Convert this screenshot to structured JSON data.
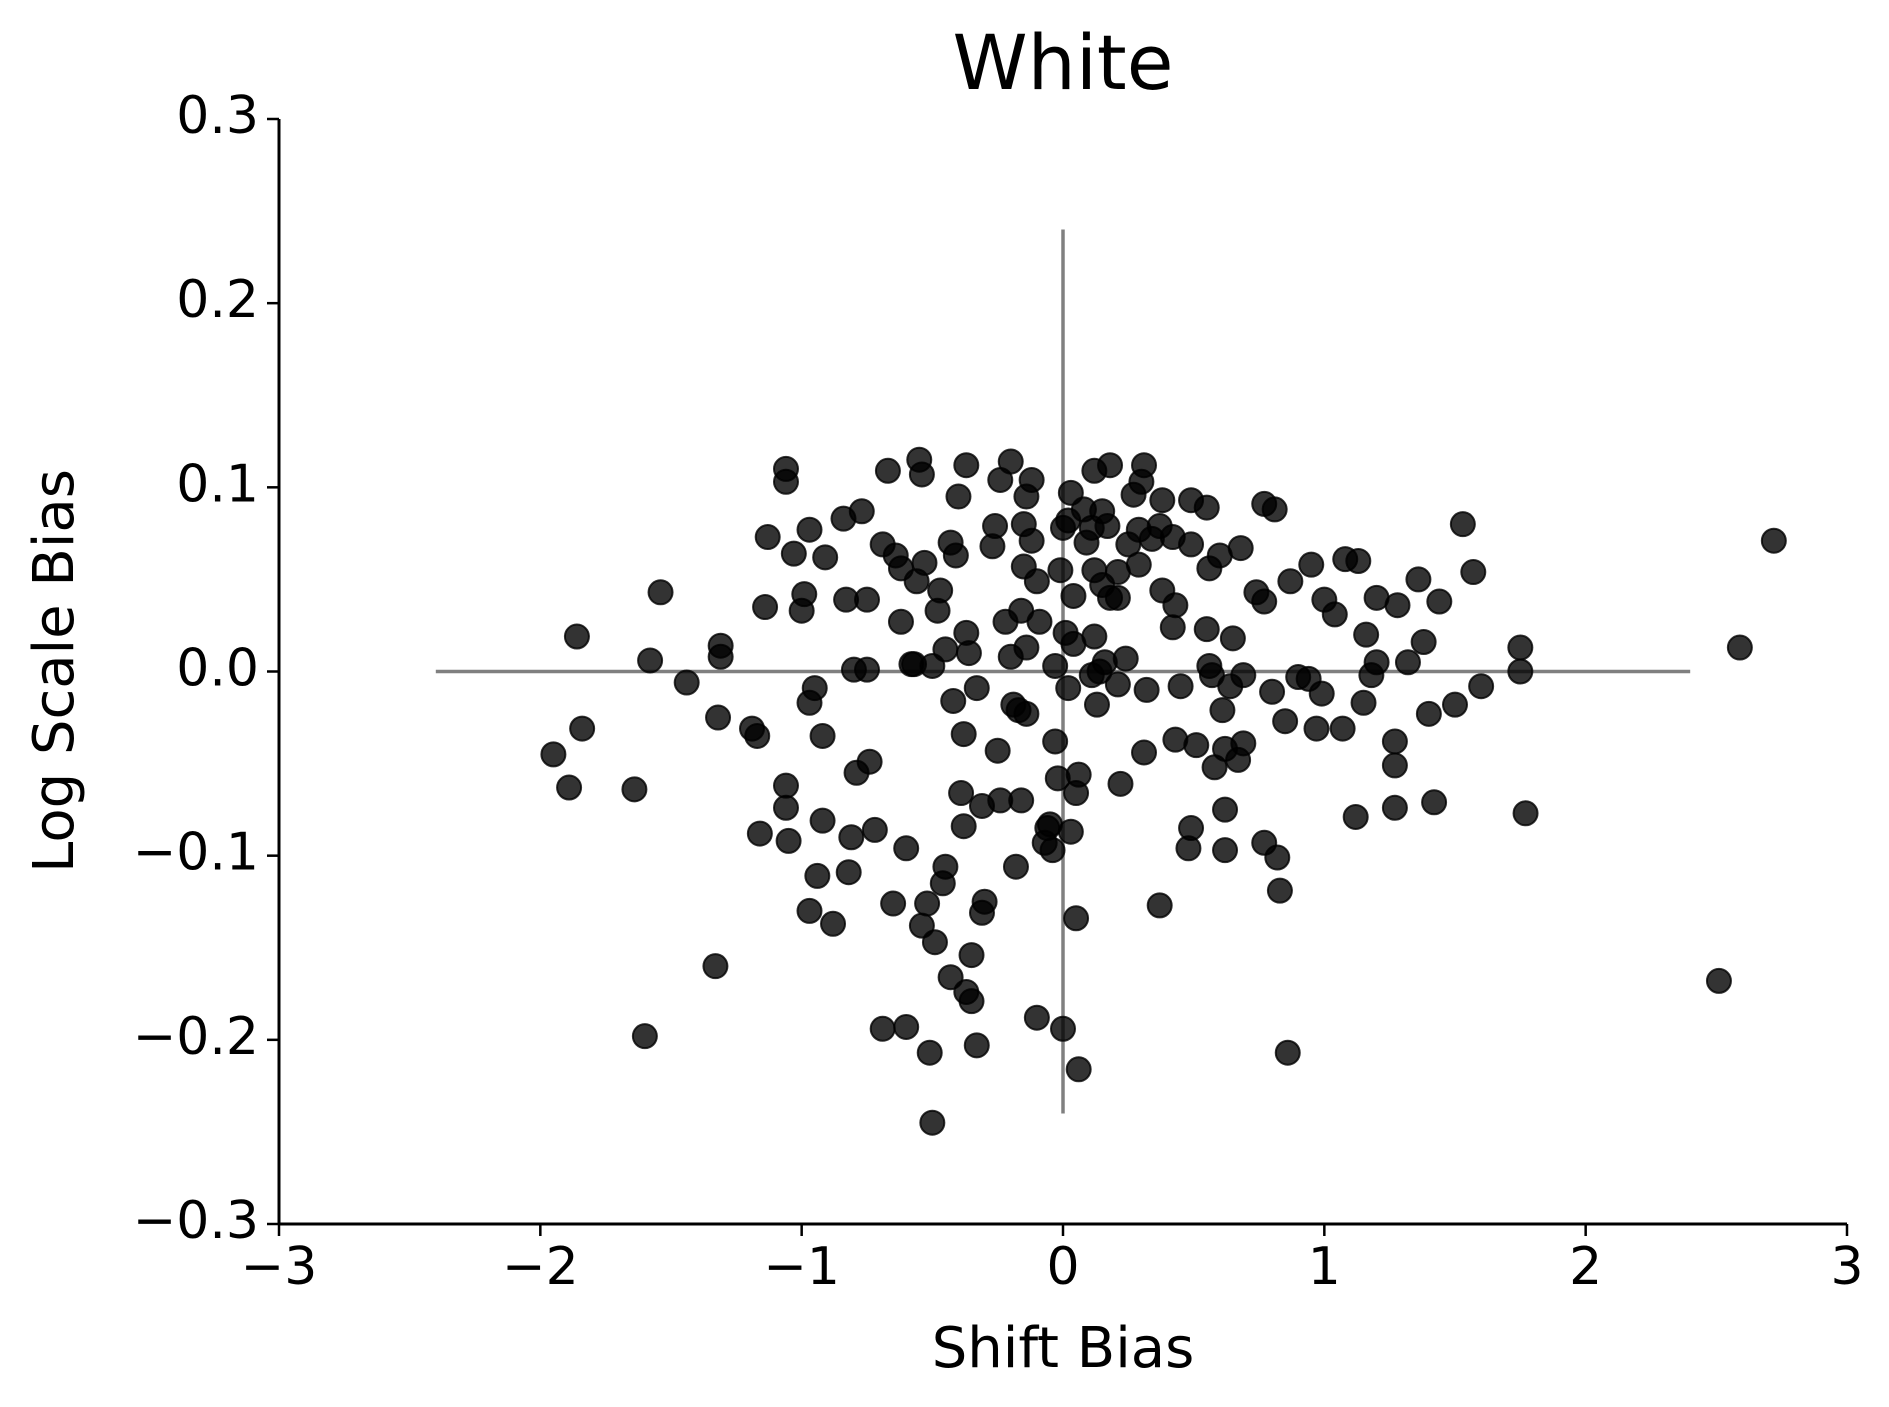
{
  "chart_data": {
    "type": "scatter",
    "title": "White",
    "x_label": "Shift Bias",
    "y_label": "Log Scale Bias",
    "color": "#000000",
    "alpha": 0.8,
    "xlim": [
      -3,
      3
    ],
    "ylim": [
      -0.3,
      0.3
    ],
    "xticks": [
      {
        "value": -3,
        "label": "−3"
      },
      {
        "value": -2,
        "label": "−2"
      },
      {
        "value": -1,
        "label": "−1"
      },
      0,
      1,
      2,
      3
    ],
    "yticks": [
      {
        "value": -0.3,
        "label": "−0.3"
      },
      {
        "value": -0.2,
        "label": "−0.2"
      },
      {
        "value": -0.1,
        "label": "−0.1"
      },
      {
        "value": 0,
        "label": "0.0"
      },
      0.1,
      0.2,
      0.3
    ],
    "reference_lines": [
      {
        "orientation": "horizontal",
        "value": 0,
        "from": -2.4,
        "to": 2.4,
        "color": "#808080"
      },
      {
        "orientation": "vertical",
        "value": 0,
        "from": -0.24,
        "to": 0.24,
        "color": "#808080"
      }
    ],
    "x": [
      2.72,
      2.59,
      2.51,
      1.77,
      1.75,
      1.75,
      1.6,
      1.53,
      1.57,
      1.5,
      1.44,
      1.42,
      1.4,
      1.38,
      1.36,
      1.32,
      1.28,
      1.27,
      1.27,
      1.27,
      1.2,
      1.2,
      1.18,
      1.16,
      1.15,
      1.13,
      1.12,
      1.08,
      1.07,
      1.04,
      1.0,
      0.99,
      0.97,
      0.95,
      0.94,
      0.9,
      0.87,
      0.86,
      0.85,
      0.83,
      0.82,
      0.81,
      0.8,
      0.77,
      0.77,
      0.77,
      0.74,
      0.69,
      0.69,
      0.68,
      0.67,
      0.65,
      0.64,
      0.62,
      0.62,
      0.62,
      0.61,
      0.6,
      0.58,
      0.57,
      0.56,
      0.56,
      0.55,
      0.55,
      0.51,
      0.49,
      0.49,
      0.48,
      0.49,
      0.45,
      0.43,
      0.43,
      0.42,
      0.42,
      0.38,
      0.37,
      0.38,
      0.37,
      0.34,
      0.32,
      0.31,
      0.31,
      0.3,
      0.29,
      0.29,
      0.27,
      0.25,
      0.24,
      0.22,
      0.21,
      0.21,
      0.21,
      0.18,
      0.18,
      0.17,
      0.16,
      0.15,
      0.15,
      0.14,
      0.13,
      0.12,
      0.12,
      0.12,
      0.11,
      0.11,
      0.09,
      0.08,
      0.06,
      0.06,
      0.05,
      0.05,
      0.04,
      0.04,
      0.03,
      0.03,
      0.02,
      0.02,
      0.01,
      0.0,
      0.0,
      -0.01,
      -0.02,
      -0.03,
      -0.03,
      -0.04,
      -0.05,
      -0.06,
      -0.07,
      -0.09,
      -0.1,
      -0.1,
      -0.12,
      -0.12,
      -0.14,
      -0.14,
      -0.15,
      -0.14,
      -0.15,
      -0.16,
      -0.16,
      -0.17,
      -0.18,
      -0.19,
      -0.2,
      -0.2,
      -0.22,
      -0.24,
      -0.24,
      -0.25,
      -0.26,
      -0.27,
      -0.3,
      -0.31,
      -0.31,
      -0.33,
      -0.33,
      -0.35,
      -0.35,
      -0.36,
      -0.37,
      -0.37,
      -0.37,
      -0.38,
      -0.38,
      -0.39,
      -0.4,
      -0.41,
      -0.42,
      -0.43,
      -0.43,
      -0.45,
      -0.45,
      -0.46,
      -0.47,
      -0.48,
      -0.49,
      -0.5,
      -0.5,
      -0.51,
      -0.52,
      -0.53,
      -0.54,
      -0.54,
      -0.55,
      -0.56,
      -0.57,
      -0.58,
      -0.6,
      -0.6,
      -0.62,
      -0.62,
      -0.64,
      -0.65,
      -0.67,
      -0.69,
      -0.69,
      -0.72,
      -0.74,
      -0.75,
      -0.75,
      -0.77,
      -0.79,
      -0.8,
      -0.81,
      -0.82,
      -0.83,
      -0.84,
      -0.88,
      -0.91,
      -0.92,
      -0.92,
      -0.94,
      -0.95,
      -0.97,
      -0.97,
      -0.97,
      -0.99,
      -1.0,
      -1.03,
      -1.05,
      -1.06,
      -1.06,
      -1.06,
      -1.06,
      -1.13,
      -1.14,
      -1.16,
      -1.17,
      -1.19,
      -1.31,
      -1.31,
      -1.32,
      -1.33,
      -1.44,
      -1.54,
      -1.58,
      -1.6,
      -1.64,
      -1.84,
      -1.86,
      -1.89,
      -1.95
    ],
    "y": [
      0.071,
      0.013,
      -0.168,
      -0.077,
      0.013,
      0.0,
      -0.008,
      0.08,
      0.054,
      -0.018,
      0.038,
      -0.071,
      -0.023,
      0.016,
      0.05,
      0.005,
      0.036,
      -0.038,
      -0.051,
      -0.074,
      0.04,
      0.005,
      -0.002,
      0.02,
      -0.017,
      0.06,
      -0.079,
      0.061,
      -0.031,
      0.031,
      0.039,
      -0.012,
      -0.031,
      0.058,
      -0.004,
      -0.003,
      0.049,
      -0.207,
      -0.027,
      -0.119,
      -0.101,
      0.088,
      -0.011,
      0.091,
      -0.093,
      0.038,
      0.043,
      -0.002,
      -0.039,
      0.067,
      -0.048,
      0.018,
      -0.008,
      -0.097,
      -0.075,
      -0.042,
      -0.021,
      0.063,
      -0.052,
      -0.002,
      0.056,
      0.003,
      0.089,
      0.023,
      -0.04,
      0.093,
      -0.085,
      -0.096,
      0.069,
      -0.008,
      0.036,
      -0.037,
      0.073,
      0.024,
      0.044,
      -0.127,
      0.093,
      0.079,
      0.072,
      -0.01,
      -0.044,
      0.112,
      0.103,
      0.058,
      0.077,
      0.096,
      0.069,
      0.007,
      -0.061,
      0.054,
      0.04,
      -0.007,
      0.112,
      0.04,
      0.079,
      0.005,
      0.047,
      0.087,
      0.0,
      -0.018,
      0.109,
      0.019,
      0.055,
      0.078,
      -0.002,
      0.07,
      0.088,
      -0.216,
      -0.056,
      -0.134,
      -0.066,
      0.041,
      0.015,
      -0.087,
      0.097,
      -0.009,
      0.082,
      0.021,
      -0.194,
      0.078,
      0.055,
      -0.058,
      -0.038,
      0.003,
      -0.097,
      -0.083,
      -0.085,
      -0.093,
      0.027,
      0.049,
      -0.188,
      0.071,
      0.104,
      -0.023,
      0.095,
      0.08,
      0.013,
      0.057,
      0.033,
      -0.07,
      -0.021,
      -0.106,
      -0.018,
      0.008,
      0.114,
      0.027,
      -0.07,
      0.104,
      -0.043,
      0.079,
      0.068,
      -0.125,
      -0.131,
      -0.073,
      -0.009,
      -0.203,
      -0.179,
      -0.154,
      0.01,
      0.112,
      0.021,
      -0.174,
      -0.084,
      -0.034,
      -0.066,
      0.095,
      0.063,
      -0.016,
      0.07,
      -0.166,
      0.012,
      -0.106,
      -0.115,
      0.044,
      0.033,
      -0.147,
      0.003,
      -0.245,
      -0.207,
      -0.126,
      0.059,
      -0.138,
      0.107,
      0.115,
      0.049,
      0.004,
      0.004,
      -0.193,
      -0.096,
      0.056,
      0.027,
      0.063,
      -0.126,
      0.109,
      -0.194,
      0.069,
      -0.086,
      -0.049,
      0.001,
      0.039,
      0.087,
      -0.055,
      0.001,
      -0.09,
      -0.109,
      0.039,
      0.083,
      -0.137,
      0.062,
      -0.035,
      -0.081,
      -0.111,
      -0.009,
      -0.13,
      -0.017,
      0.077,
      0.042,
      0.033,
      0.064,
      -0.092,
      -0.062,
      -0.074,
      0.103,
      0.11,
      0.073,
      0.035,
      -0.088,
      -0.035,
      -0.031,
      0.014,
      0.008,
      -0.025,
      -0.16,
      -0.006,
      0.043,
      0.006,
      -0.198,
      -0.064,
      -0.031,
      0.019,
      -0.063,
      -0.045
    ]
  }
}
